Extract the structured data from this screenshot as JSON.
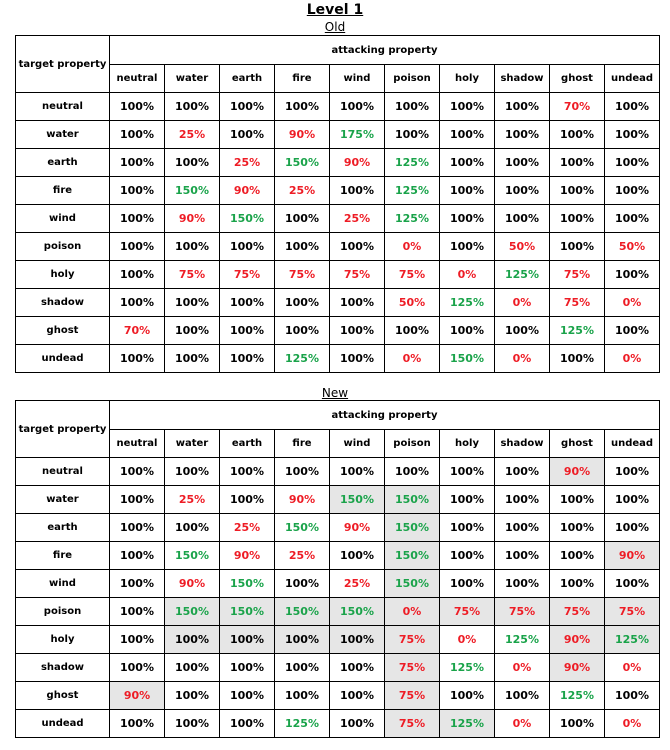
{
  "title": "Level 1",
  "colors": {
    "red": "#ee1c25",
    "green": "#1aa34a",
    "highlight": "#e6e6e6"
  },
  "tables": [
    {
      "caption": "Old",
      "corner_label": "target property",
      "group_label": "attacking property",
      "columns": [
        "neutral",
        "water",
        "earth",
        "fire",
        "wind",
        "poison",
        "holy",
        "shadow",
        "ghost",
        "undead"
      ],
      "rows": [
        {
          "label": "neutral",
          "values": [
            "100%",
            "100%",
            "100%",
            "100%",
            "100%",
            "100%",
            "100%",
            "100%",
            "70%",
            "100%"
          ]
        },
        {
          "label": "water",
          "values": [
            "100%",
            "25%",
            "100%",
            "90%",
            "175%",
            "100%",
            "100%",
            "100%",
            "100%",
            "100%"
          ]
        },
        {
          "label": "earth",
          "values": [
            "100%",
            "100%",
            "25%",
            "150%",
            "90%",
            "125%",
            "100%",
            "100%",
            "100%",
            "100%"
          ]
        },
        {
          "label": "fire",
          "values": [
            "100%",
            "150%",
            "90%",
            "25%",
            "100%",
            "125%",
            "100%",
            "100%",
            "100%",
            "100%"
          ]
        },
        {
          "label": "wind",
          "values": [
            "100%",
            "90%",
            "150%",
            "100%",
            "25%",
            "125%",
            "100%",
            "100%",
            "100%",
            "100%"
          ]
        },
        {
          "label": "poison",
          "values": [
            "100%",
            "100%",
            "100%",
            "100%",
            "100%",
            "0%",
            "100%",
            "50%",
            "100%",
            "50%"
          ]
        },
        {
          "label": "holy",
          "values": [
            "100%",
            "75%",
            "75%",
            "75%",
            "75%",
            "75%",
            "0%",
            "125%",
            "75%",
            "100%"
          ]
        },
        {
          "label": "shadow",
          "values": [
            "100%",
            "100%",
            "100%",
            "100%",
            "100%",
            "50%",
            "125%",
            "0%",
            "75%",
            "0%"
          ]
        },
        {
          "label": "ghost",
          "values": [
            "70%",
            "100%",
            "100%",
            "100%",
            "100%",
            "100%",
            "100%",
            "100%",
            "125%",
            "100%"
          ]
        },
        {
          "label": "undead",
          "values": [
            "100%",
            "100%",
            "100%",
            "125%",
            "100%",
            "0%",
            "150%",
            "0%",
            "100%",
            "0%"
          ]
        }
      ],
      "highlights": []
    },
    {
      "caption": "New",
      "corner_label": "target property",
      "group_label": "attacking property",
      "columns": [
        "neutral",
        "water",
        "earth",
        "fire",
        "wind",
        "poison",
        "holy",
        "shadow",
        "ghost",
        "undead"
      ],
      "rows": [
        {
          "label": "neutral",
          "values": [
            "100%",
            "100%",
            "100%",
            "100%",
            "100%",
            "100%",
            "100%",
            "100%",
            "90%",
            "100%"
          ]
        },
        {
          "label": "water",
          "values": [
            "100%",
            "25%",
            "100%",
            "90%",
            "150%",
            "150%",
            "100%",
            "100%",
            "100%",
            "100%"
          ]
        },
        {
          "label": "earth",
          "values": [
            "100%",
            "100%",
            "25%",
            "150%",
            "90%",
            "150%",
            "100%",
            "100%",
            "100%",
            "100%"
          ]
        },
        {
          "label": "fire",
          "values": [
            "100%",
            "150%",
            "90%",
            "25%",
            "100%",
            "150%",
            "100%",
            "100%",
            "100%",
            "90%"
          ]
        },
        {
          "label": "wind",
          "values": [
            "100%",
            "90%",
            "150%",
            "100%",
            "25%",
            "150%",
            "100%",
            "100%",
            "100%",
            "100%"
          ]
        },
        {
          "label": "poison",
          "values": [
            "100%",
            "150%",
            "150%",
            "150%",
            "150%",
            "0%",
            "75%",
            "75%",
            "75%",
            "75%"
          ]
        },
        {
          "label": "holy",
          "values": [
            "100%",
            "100%",
            "100%",
            "100%",
            "100%",
            "75%",
            "0%",
            "125%",
            "90%",
            "125%"
          ]
        },
        {
          "label": "shadow",
          "values": [
            "100%",
            "100%",
            "100%",
            "100%",
            "100%",
            "75%",
            "125%",
            "0%",
            "90%",
            "0%"
          ]
        },
        {
          "label": "ghost",
          "values": [
            "90%",
            "100%",
            "100%",
            "100%",
            "100%",
            "75%",
            "100%",
            "100%",
            "125%",
            "100%"
          ]
        },
        {
          "label": "undead",
          "values": [
            "100%",
            "100%",
            "100%",
            "125%",
            "100%",
            "75%",
            "125%",
            "0%",
            "100%",
            "0%"
          ]
        }
      ],
      "highlights": [
        [
          0,
          8
        ],
        [
          1,
          4
        ],
        [
          1,
          5
        ],
        [
          2,
          5
        ],
        [
          3,
          5
        ],
        [
          3,
          9
        ],
        [
          4,
          5
        ],
        [
          5,
          1
        ],
        [
          5,
          2
        ],
        [
          5,
          3
        ],
        [
          5,
          4
        ],
        [
          5,
          5
        ],
        [
          5,
          6
        ],
        [
          5,
          7
        ],
        [
          5,
          8
        ],
        [
          5,
          9
        ],
        [
          6,
          1
        ],
        [
          6,
          2
        ],
        [
          6,
          3
        ],
        [
          6,
          4
        ],
        [
          6,
          5
        ],
        [
          6,
          8
        ],
        [
          6,
          9
        ],
        [
          7,
          5
        ],
        [
          7,
          8
        ],
        [
          8,
          0
        ],
        [
          8,
          5
        ],
        [
          9,
          5
        ],
        [
          9,
          6
        ]
      ]
    }
  ]
}
